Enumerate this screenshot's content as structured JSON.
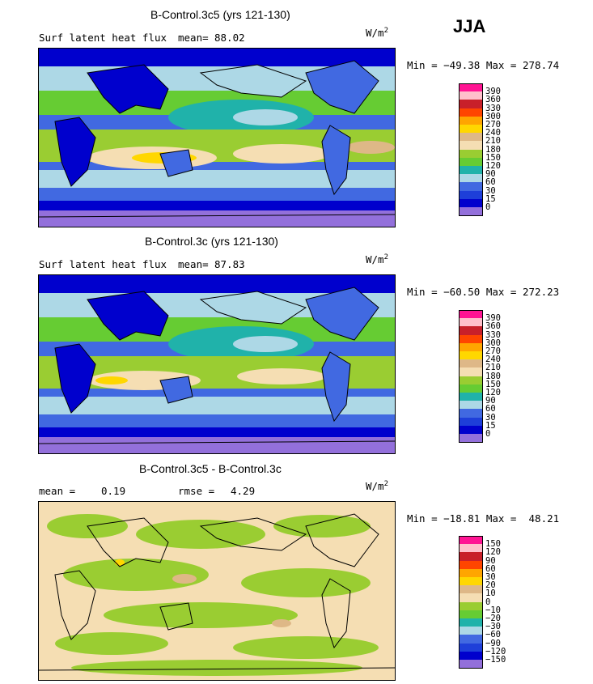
{
  "season": "JJA",
  "panels": [
    {
      "title": "B-Control.3c5 (yrs 121-130)",
      "left_label": "Surf latent heat flux",
      "stat1_label": "mean=",
      "stat1_value": "88.02",
      "stat2_label": "",
      "stat2_value": "",
      "unit_base": "W/m",
      "unit_exp": "2",
      "minmax": "Min = −49.38 Max = 278.74",
      "colorbar": {
        "labels": [
          "390",
          "360",
          "330",
          "300",
          "270",
          "240",
          "210",
          "180",
          "150",
          "120",
          "90",
          "60",
          "30",
          "15",
          "0"
        ],
        "colors": [
          "#ff1493",
          "#ffc0cb",
          "#c8202a",
          "#ff4500",
          "#ffa500",
          "#ffd700",
          "#deb887",
          "#f5deb3",
          "#9acd32",
          "#66cc33",
          "#20b2aa",
          "#add8e6",
          "#4169e1",
          "#1e3fd9",
          "#0000cd",
          "#9370db"
        ]
      }
    },
    {
      "title": "B-Control.3c (yrs 121-130)",
      "left_label": "Surf latent heat flux",
      "stat1_label": "mean=",
      "stat1_value": "87.83",
      "stat2_label": "",
      "stat2_value": "",
      "unit_base": "W/m",
      "unit_exp": "2",
      "minmax": "Min = −60.50 Max = 272.23",
      "colorbar": {
        "labels": [
          "390",
          "360",
          "330",
          "300",
          "270",
          "240",
          "210",
          "180",
          "150",
          "120",
          "90",
          "60",
          "30",
          "15",
          "0"
        ],
        "colors": [
          "#ff1493",
          "#ffc0cb",
          "#c8202a",
          "#ff4500",
          "#ffa500",
          "#ffd700",
          "#deb887",
          "#f5deb3",
          "#9acd32",
          "#66cc33",
          "#20b2aa",
          "#add8e6",
          "#4169e1",
          "#1e3fd9",
          "#0000cd",
          "#9370db"
        ]
      }
    },
    {
      "title": "B-Control.3c5 - B-Control.3c",
      "left_label": "mean =",
      "stat1_label": "",
      "stat1_value": "0.19",
      "stat2_label": "rmse =",
      "stat2_value": "4.29",
      "unit_base": "W/m",
      "unit_exp": "2",
      "minmax": "Min = −18.81 Max =  48.21",
      "colorbar": {
        "labels": [
          "150",
          "120",
          "90",
          "60",
          "30",
          "20",
          "10",
          "0",
          "−10",
          "−20",
          "−30",
          "−60",
          "−90",
          "−120",
          "−150"
        ],
        "colors": [
          "#ff1493",
          "#ffc0cb",
          "#c8202a",
          "#ff4500",
          "#ffa500",
          "#ffd700",
          "#deb887",
          "#f5deb3",
          "#9acd32",
          "#66cc33",
          "#20b2aa",
          "#add8e6",
          "#4169e1",
          "#1e3fd9",
          "#0000cd",
          "#9370db"
        ]
      }
    }
  ]
}
